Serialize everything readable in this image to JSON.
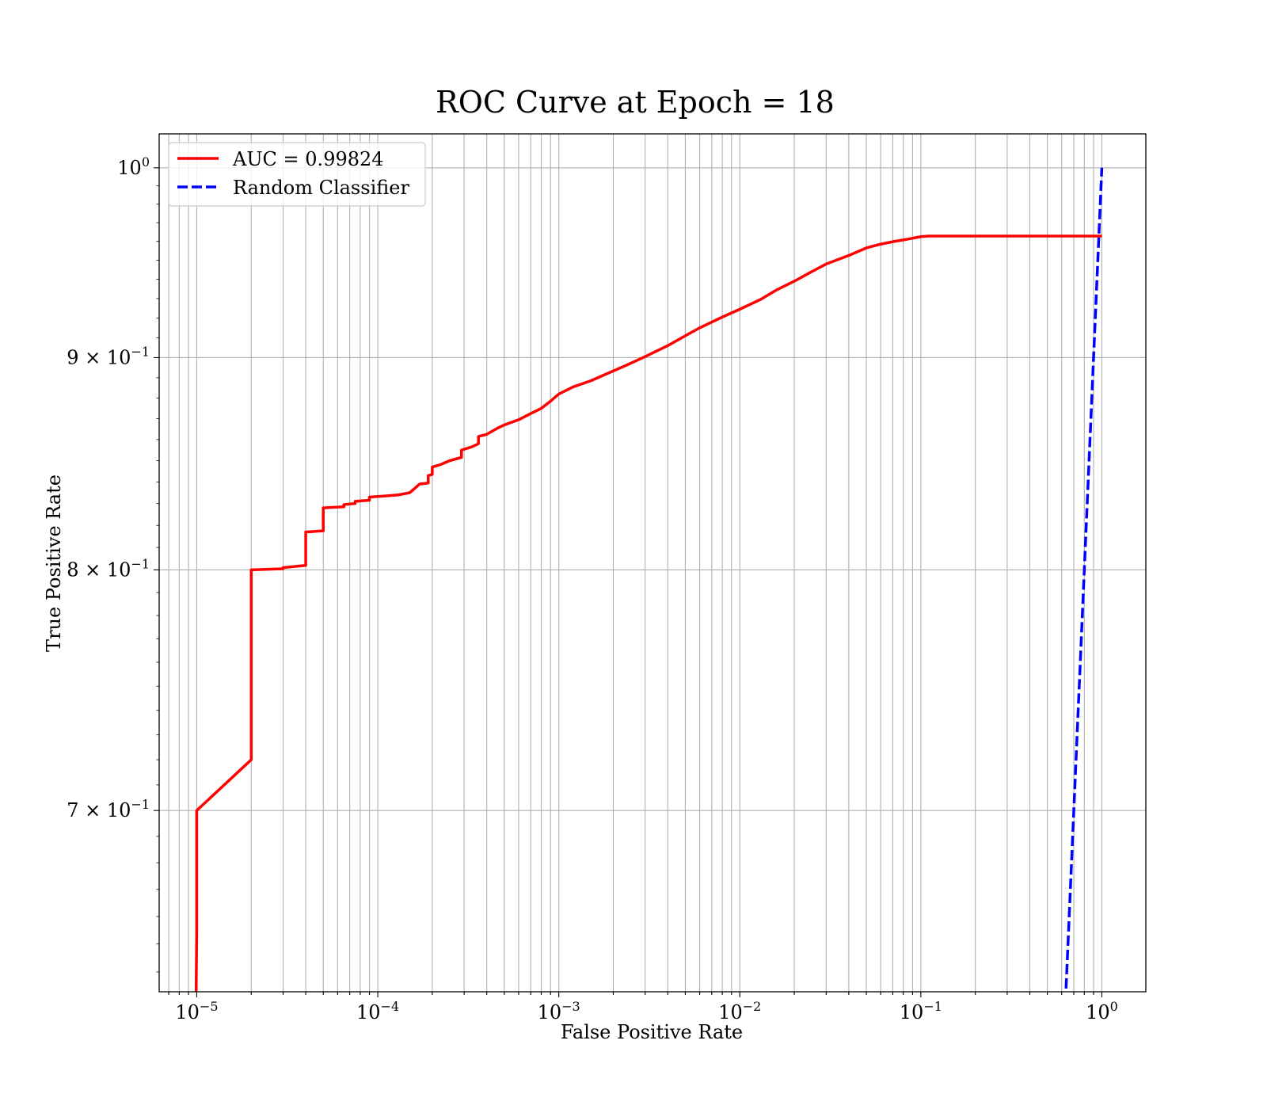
{
  "chart_data": {
    "type": "line",
    "title": "ROC Curve at Epoch = 18",
    "xlabel": "False Positive Rate",
    "ylabel": "True Positive Rate",
    "xscale": "log",
    "yscale": "log",
    "xlim": [
      6.2e-06,
      1.75
    ],
    "ylim": [
      0.633,
      1.019
    ],
    "grid": true,
    "grid_minor_x": true,
    "legend_position": "upper-left",
    "x_ticks": [
      {
        "value": 1e-05,
        "base": "10",
        "exp": "−5"
      },
      {
        "value": 0.0001,
        "base": "10",
        "exp": "−4"
      },
      {
        "value": 0.001,
        "base": "10",
        "exp": "−3"
      },
      {
        "value": 0.01,
        "base": "10",
        "exp": "−2"
      },
      {
        "value": 0.1,
        "base": "10",
        "exp": "−1"
      },
      {
        "value": 1,
        "base": "10",
        "exp": "0"
      }
    ],
    "y_ticks": [
      {
        "value": 1.0,
        "base": "10",
        "exp": "0"
      },
      {
        "value": 0.9,
        "base": "9 × 10",
        "exp": "−1"
      },
      {
        "value": 0.8,
        "base": "8 × 10",
        "exp": "−1"
      },
      {
        "value": 0.7,
        "base": "7 × 10",
        "exp": "−1"
      }
    ],
    "series": [
      {
        "name": "AUC = 0.99824",
        "color": "#ff0000",
        "style": "solid",
        "points": [
          [
            9.8e-06,
            0.6
          ],
          [
            1e-05,
            0.655
          ],
          [
            1e-05,
            0.7
          ],
          [
            2e-05,
            0.72
          ],
          [
            2e-05,
            0.8
          ],
          [
            3e-05,
            0.8005
          ],
          [
            3e-05,
            0.801
          ],
          [
            4e-05,
            0.802
          ],
          [
            4e-05,
            0.817
          ],
          [
            5e-05,
            0.8175
          ],
          [
            5e-05,
            0.828
          ],
          [
            6.5e-05,
            0.8285
          ],
          [
            6.5e-05,
            0.8295
          ],
          [
            7.5e-05,
            0.83
          ],
          [
            7.5e-05,
            0.831
          ],
          [
            9e-05,
            0.8315
          ],
          [
            9e-05,
            0.833
          ],
          [
            0.00011,
            0.8335
          ],
          [
            0.00013,
            0.834
          ],
          [
            0.00015,
            0.835
          ],
          [
            0.00016,
            0.837
          ],
          [
            0.00017,
            0.839
          ],
          [
            0.00019,
            0.8395
          ],
          [
            0.00019,
            0.843
          ],
          [
            0.0002,
            0.8435
          ],
          [
            0.0002,
            0.847
          ],
          [
            0.00022,
            0.848
          ],
          [
            0.00025,
            0.85
          ],
          [
            0.00029,
            0.8515
          ],
          [
            0.00029,
            0.855
          ],
          [
            0.00033,
            0.8565
          ],
          [
            0.00036,
            0.858
          ],
          [
            0.00036,
            0.8615
          ],
          [
            0.0004,
            0.8625
          ],
          [
            0.00046,
            0.8655
          ],
          [
            0.0005,
            0.867
          ],
          [
            0.0006,
            0.8695
          ],
          [
            0.0007,
            0.8725
          ],
          [
            0.0008,
            0.875
          ],
          [
            0.0009,
            0.8785
          ],
          [
            0.001,
            0.882
          ],
          [
            0.0012,
            0.8855
          ],
          [
            0.0015,
            0.8885
          ],
          [
            0.0019,
            0.8925
          ],
          [
            0.0024,
            0.8965
          ],
          [
            0.003,
            0.9005
          ],
          [
            0.004,
            0.906
          ],
          [
            0.005,
            0.911
          ],
          [
            0.006,
            0.915
          ],
          [
            0.008,
            0.9205
          ],
          [
            0.01,
            0.9245
          ],
          [
            0.013,
            0.9295
          ],
          [
            0.016,
            0.9345
          ],
          [
            0.02,
            0.939
          ],
          [
            0.025,
            0.944
          ],
          [
            0.03,
            0.948
          ],
          [
            0.04,
            0.9525
          ],
          [
            0.05,
            0.9565
          ],
          [
            0.06,
            0.9585
          ],
          [
            0.07,
            0.9598
          ],
          [
            0.085,
            0.9612
          ],
          [
            0.1,
            0.9625
          ],
          [
            0.11,
            0.9628
          ],
          [
            0.2,
            0.9628
          ],
          [
            1.0,
            0.9628
          ]
        ]
      },
      {
        "name": "Random Classifier",
        "color": "#0000ff",
        "style": "dashed",
        "points": [
          [
            0.6,
            0.6
          ],
          [
            0.7,
            0.7
          ],
          [
            0.8,
            0.8
          ],
          [
            0.9,
            0.9
          ],
          [
            1.0,
            1.0
          ]
        ]
      }
    ]
  }
}
